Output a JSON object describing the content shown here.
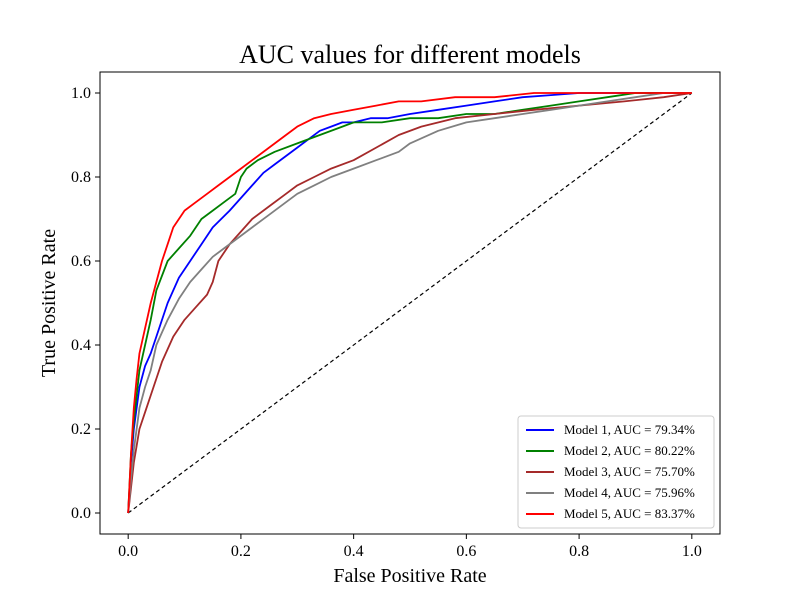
{
  "chart_data": {
    "type": "line",
    "title": "AUC values for different models",
    "xlabel": "False Positive Rate",
    "ylabel": "True Positive Rate",
    "xlim": [
      -0.05,
      1.05
    ],
    "ylim": [
      -0.05,
      1.05
    ],
    "xticks": [
      0.0,
      0.2,
      0.4,
      0.6,
      0.8,
      1.0
    ],
    "yticks": [
      0.0,
      0.2,
      0.4,
      0.6,
      0.8,
      1.0
    ],
    "xtick_labels": [
      "0.0",
      "0.2",
      "0.4",
      "0.6",
      "0.8",
      "1.0"
    ],
    "ytick_labels": [
      "0.0",
      "0.2",
      "0.4",
      "0.6",
      "0.8",
      "1.0"
    ],
    "grid": false,
    "legend_position": "lower-right",
    "reference_line": {
      "style": "dashed",
      "color": "#000000",
      "x": [
        0,
        1
      ],
      "y": [
        0,
        1
      ]
    },
    "series": [
      {
        "name": "Model 1, AUC = 79.34%",
        "color": "#0000ff",
        "x": [
          0.0,
          0.005,
          0.01,
          0.015,
          0.02,
          0.03,
          0.04,
          0.05,
          0.07,
          0.09,
          0.11,
          0.13,
          0.15,
          0.18,
          0.2,
          0.22,
          0.24,
          0.26,
          0.28,
          0.3,
          0.32,
          0.34,
          0.36,
          0.38,
          0.4,
          0.43,
          0.46,
          0.5,
          0.55,
          0.6,
          0.65,
          0.7,
          0.75,
          0.8,
          0.85,
          0.9,
          1.0
        ],
        "y": [
          0.0,
          0.12,
          0.2,
          0.25,
          0.3,
          0.35,
          0.38,
          0.42,
          0.5,
          0.56,
          0.6,
          0.64,
          0.68,
          0.72,
          0.75,
          0.78,
          0.81,
          0.83,
          0.85,
          0.87,
          0.89,
          0.91,
          0.92,
          0.93,
          0.93,
          0.94,
          0.94,
          0.95,
          0.96,
          0.97,
          0.98,
          0.99,
          0.995,
          1.0,
          1.0,
          1.0,
          1.0
        ]
      },
      {
        "name": "Model 2, AUC = 80.22%",
        "color": "#008000",
        "x": [
          0.0,
          0.005,
          0.01,
          0.015,
          0.02,
          0.03,
          0.04,
          0.05,
          0.07,
          0.09,
          0.11,
          0.13,
          0.15,
          0.17,
          0.19,
          0.2,
          0.21,
          0.23,
          0.26,
          0.3,
          0.34,
          0.38,
          0.4,
          0.45,
          0.5,
          0.55,
          0.6,
          0.65,
          0.7,
          0.75,
          0.8,
          0.85,
          0.9,
          1.0
        ],
        "y": [
          0.0,
          0.14,
          0.22,
          0.28,
          0.34,
          0.4,
          0.46,
          0.53,
          0.6,
          0.63,
          0.66,
          0.7,
          0.72,
          0.74,
          0.76,
          0.8,
          0.82,
          0.84,
          0.86,
          0.88,
          0.9,
          0.92,
          0.93,
          0.93,
          0.94,
          0.94,
          0.95,
          0.95,
          0.96,
          0.97,
          0.98,
          0.99,
          1.0,
          1.0
        ]
      },
      {
        "name": "Model 3, AUC = 75.70%",
        "color": "#a52a2a",
        "x": [
          0.0,
          0.005,
          0.01,
          0.015,
          0.02,
          0.03,
          0.04,
          0.05,
          0.06,
          0.08,
          0.1,
          0.12,
          0.14,
          0.15,
          0.16,
          0.18,
          0.2,
          0.22,
          0.25,
          0.28,
          0.3,
          0.33,
          0.36,
          0.4,
          0.44,
          0.48,
          0.52,
          0.58,
          0.65,
          0.72,
          0.8,
          0.88,
          0.95,
          1.0
        ],
        "y": [
          0.0,
          0.06,
          0.12,
          0.16,
          0.2,
          0.24,
          0.28,
          0.32,
          0.36,
          0.42,
          0.46,
          0.49,
          0.52,
          0.55,
          0.6,
          0.64,
          0.67,
          0.7,
          0.73,
          0.76,
          0.78,
          0.8,
          0.82,
          0.84,
          0.87,
          0.9,
          0.92,
          0.94,
          0.95,
          0.96,
          0.97,
          0.98,
          0.99,
          1.0
        ]
      },
      {
        "name": "Model 4, AUC = 75.96%",
        "color": "#808080",
        "x": [
          0.0,
          0.005,
          0.01,
          0.015,
          0.02,
          0.03,
          0.04,
          0.05,
          0.07,
          0.09,
          0.11,
          0.13,
          0.15,
          0.17,
          0.19,
          0.22,
          0.25,
          0.28,
          0.3,
          0.33,
          0.36,
          0.4,
          0.44,
          0.48,
          0.5,
          0.55,
          0.6,
          0.65,
          0.7,
          0.75,
          0.8,
          0.85,
          0.9,
          0.95,
          1.0
        ],
        "y": [
          0.0,
          0.08,
          0.15,
          0.2,
          0.25,
          0.3,
          0.34,
          0.4,
          0.46,
          0.51,
          0.55,
          0.58,
          0.61,
          0.63,
          0.65,
          0.68,
          0.71,
          0.74,
          0.76,
          0.78,
          0.8,
          0.82,
          0.84,
          0.86,
          0.88,
          0.91,
          0.93,
          0.94,
          0.95,
          0.96,
          0.97,
          0.98,
          0.99,
          1.0,
          1.0
        ]
      },
      {
        "name": "Model 5, AUC = 83.37%",
        "color": "#ff0000",
        "x": [
          0.0,
          0.005,
          0.01,
          0.015,
          0.02,
          0.03,
          0.04,
          0.05,
          0.06,
          0.07,
          0.08,
          0.09,
          0.1,
          0.12,
          0.14,
          0.16,
          0.18,
          0.2,
          0.22,
          0.25,
          0.28,
          0.3,
          0.33,
          0.36,
          0.4,
          0.44,
          0.48,
          0.52,
          0.58,
          0.65,
          0.72,
          0.8,
          0.88,
          1.0
        ],
        "y": [
          0.0,
          0.14,
          0.25,
          0.32,
          0.38,
          0.44,
          0.5,
          0.55,
          0.6,
          0.64,
          0.68,
          0.7,
          0.72,
          0.74,
          0.76,
          0.78,
          0.8,
          0.82,
          0.84,
          0.87,
          0.9,
          0.92,
          0.94,
          0.95,
          0.96,
          0.97,
          0.98,
          0.98,
          0.99,
          0.99,
          1.0,
          1.0,
          1.0,
          1.0
        ]
      }
    ]
  }
}
